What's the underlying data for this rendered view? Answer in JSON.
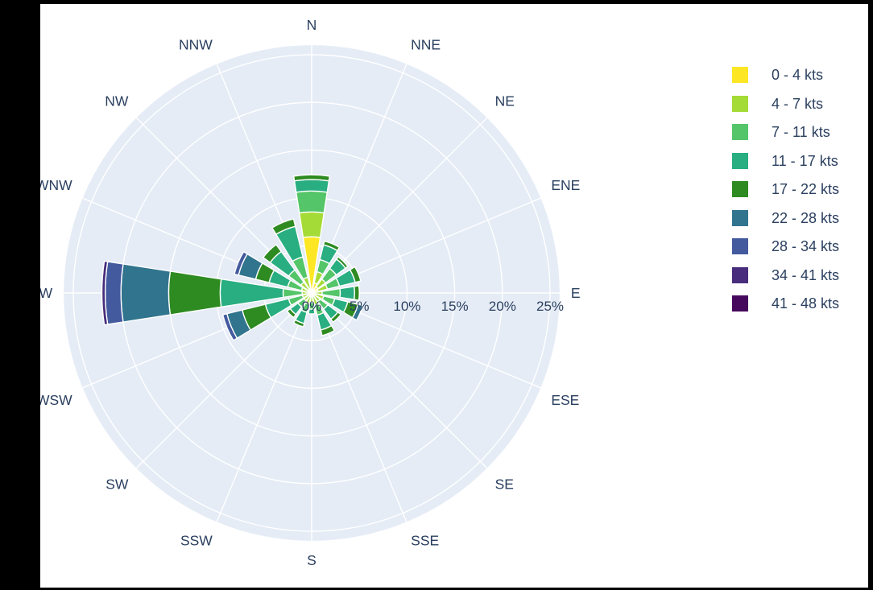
{
  "page": {
    "background_color": "#ffffff",
    "frame_color": "#000000"
  },
  "chart_data": {
    "type": "bar",
    "subtype": "wind-rose-stacked-barpolar",
    "title": "",
    "legend_position": "right",
    "grid": true,
    "polar_background_color": "#e5ecf6",
    "grid_color": "#ffffff",
    "text_color": "#2a3f5f",
    "radial_axis": {
      "tick_labels": [
        "0%",
        "5%",
        "10%",
        "15%",
        "20%",
        "25%"
      ],
      "tick_values": [
        0,
        5,
        10,
        15,
        20,
        25
      ],
      "range": [
        0,
        26
      ],
      "unit": "%"
    },
    "angular_axis": {
      "labels": [
        "N",
        "NNE",
        "NE",
        "ENE",
        "E",
        "ESE",
        "SE",
        "SSE",
        "S",
        "SSW",
        "SW",
        "WSW",
        "W",
        "WNW",
        "NW",
        "NNW"
      ]
    },
    "categories": [
      "N",
      "NNE",
      "NE",
      "ENE",
      "E",
      "ESE",
      "SE",
      "SSE",
      "S",
      "SSW",
      "SW",
      "WSW",
      "W",
      "WNW",
      "NW",
      "NNW"
    ],
    "series": [
      {
        "name": "0 - 4 kts",
        "color": "#fde725",
        "values": [
          5.9,
          1.1,
          0.8,
          0.7,
          0.3,
          0.4,
          0.3,
          0.4,
          0.3,
          0.4,
          0.3,
          0.3,
          0.3,
          0.3,
          0.4,
          0.5
        ]
      },
      {
        "name": "4 - 7 kts",
        "color": "#a5db36",
        "values": [
          2.6,
          1.2,
          1.0,
          1.0,
          0.8,
          0.9,
          0.8,
          0.9,
          0.7,
          0.8,
          0.7,
          0.7,
          0.7,
          0.8,
          1.0,
          1.2
        ]
      },
      {
        "name": "7 - 11 kts",
        "color": "#54c568",
        "values": [
          2.2,
          1.3,
          1.4,
          1.3,
          1.9,
          1.2,
          1.0,
          1.1,
          0.7,
          0.9,
          0.8,
          1.5,
          2.0,
          1.5,
          1.6,
          2.2
        ]
      },
      {
        "name": "11 - 17 kts",
        "color": "#28ae80",
        "values": [
          1.2,
          1.6,
          1.2,
          1.7,
          1.5,
          1.4,
          1.3,
          1.6,
          0.5,
          1.2,
          1.0,
          2.5,
          6.6,
          2.0,
          2.4,
          3.3
        ]
      },
      {
        "name": "17 - 22 kts",
        "color": "#2e8b21",
        "values": [
          0.5,
          0.4,
          0.3,
          0.6,
          0.5,
          1.1,
          0.4,
          0.6,
          0.0,
          0.35,
          0.4,
          2.5,
          5.4,
          1.45,
          0.9,
          0.8
        ]
      },
      {
        "name": "22 - 28 kts",
        "color": "#31748e",
        "values": [
          0.0,
          0.0,
          0.0,
          0.0,
          0.0,
          0.5,
          0.0,
          0.0,
          0.0,
          0.0,
          0.0,
          1.65,
          5.0,
          1.85,
          0.0,
          0.0
        ]
      },
      {
        "name": "28 - 34 kts",
        "color": "#445a9e",
        "values": [
          0.0,
          0.0,
          0.0,
          0.0,
          0.0,
          0.0,
          0.0,
          0.0,
          0.0,
          0.0,
          0.0,
          0.45,
          1.65,
          0.45,
          0.0,
          0.0
        ]
      },
      {
        "name": "34 - 41 kts",
        "color": "#472d7b",
        "values": [
          0.0,
          0.0,
          0.0,
          0.0,
          0.0,
          0.0,
          0.0,
          0.0,
          0.0,
          0.0,
          0.0,
          0.0,
          0.35,
          0.0,
          0.0,
          0.0
        ]
      },
      {
        "name": "41 - 48 kts",
        "color": "#46085c",
        "values": [
          0.0,
          0.0,
          0.0,
          0.0,
          0.0,
          0.0,
          0.0,
          0.0,
          0.0,
          0.0,
          0.0,
          0.0,
          0.0,
          0.0,
          0.0,
          0.0
        ]
      }
    ]
  }
}
